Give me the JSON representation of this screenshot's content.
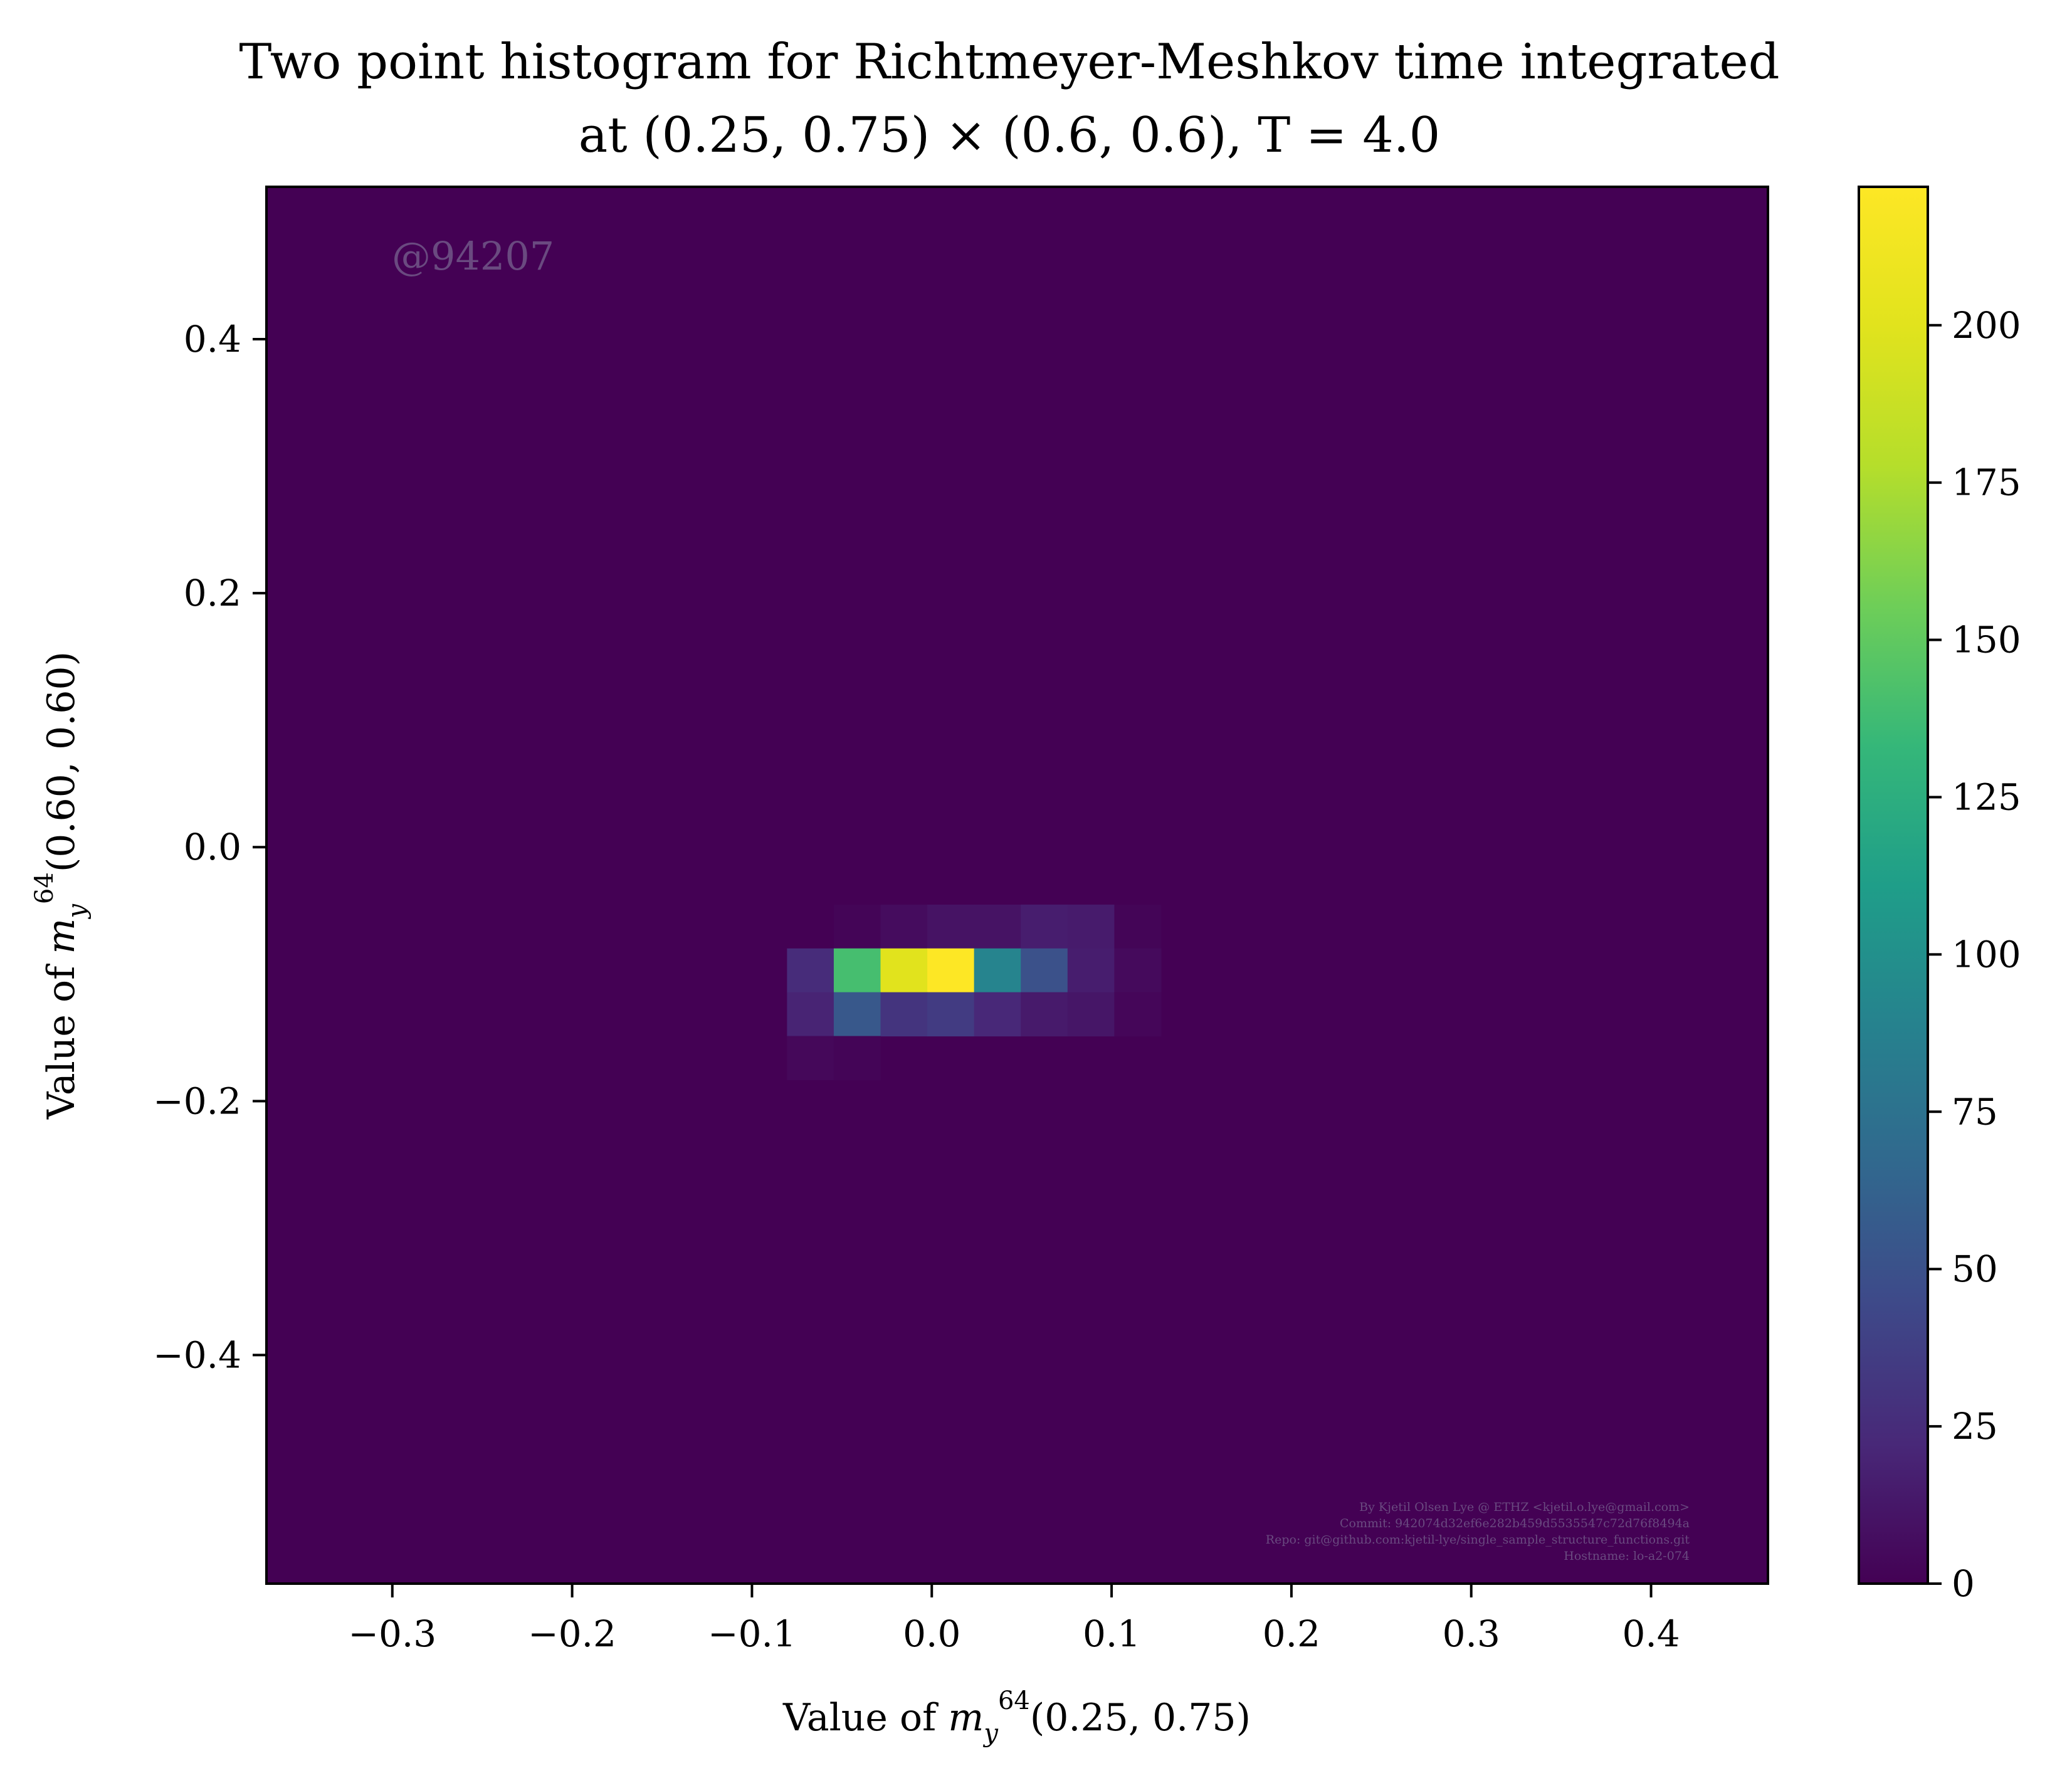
{
  "chart_data": {
    "type": "heatmap",
    "title_lines": [
      "Two point histogram for Richtmeyer-Meshkov time integrated",
      "at (0.25, 0.75) × (0.6, 0.6), T = 4.0"
    ],
    "xlabel": "Value of m_y^64(0.25, 0.75)",
    "ylabel": "Value of m_y^64(0.60, 0.60)",
    "xlim": [
      -0.37,
      0.465
    ],
    "ylim": [
      -0.58,
      0.52
    ],
    "x_ticks": [
      -0.3,
      -0.2,
      -0.1,
      0.0,
      0.1,
      0.2,
      0.3,
      0.4
    ],
    "x_tick_labels": [
      "−0.3",
      "−0.2",
      "−0.1",
      "0.0",
      "0.1",
      "0.2",
      "0.3",
      "0.4"
    ],
    "y_ticks": [
      -0.4,
      -0.2,
      0.0,
      0.2,
      0.4
    ],
    "y_tick_labels": [
      "−0.4",
      "−0.2",
      "0.0",
      "0.2",
      "0.4"
    ],
    "colorbar": {
      "colormap": "viridis",
      "range": [
        0,
        222
      ],
      "ticks": [
        0,
        25,
        50,
        75,
        100,
        125,
        150,
        175,
        200
      ],
      "tick_labels": [
        "0",
        "25",
        "50",
        "75",
        "100",
        "125",
        "150",
        "175",
        "200"
      ]
    },
    "background_value": 0,
    "bin_width": [
      0.026,
      0.0345
    ],
    "cells": [
      {
        "x": -0.0415,
        "y": -0.0625,
        "v": 2
      },
      {
        "x": -0.0155,
        "y": -0.0625,
        "v": 6
      },
      {
        "x": 0.0105,
        "y": -0.0625,
        "v": 10
      },
      {
        "x": 0.0365,
        "y": -0.0625,
        "v": 10
      },
      {
        "x": 0.0625,
        "y": -0.0625,
        "v": 16
      },
      {
        "x": 0.0885,
        "y": -0.0625,
        "v": 15
      },
      {
        "x": 0.1145,
        "y": -0.0625,
        "v": 2
      },
      {
        "x": -0.0675,
        "y": -0.097,
        "v": 25
      },
      {
        "x": -0.0415,
        "y": -0.097,
        "v": 140
      },
      {
        "x": -0.0155,
        "y": -0.097,
        "v": 200
      },
      {
        "x": 0.0105,
        "y": -0.097,
        "v": 222
      },
      {
        "x": 0.0365,
        "y": -0.097,
        "v": 90
      },
      {
        "x": 0.0625,
        "y": -0.097,
        "v": 50
      },
      {
        "x": 0.0885,
        "y": -0.097,
        "v": 16
      },
      {
        "x": 0.1145,
        "y": -0.097,
        "v": 5
      },
      {
        "x": -0.0675,
        "y": -0.1315,
        "v": 20
      },
      {
        "x": -0.0415,
        "y": -0.1315,
        "v": 55
      },
      {
        "x": -0.0155,
        "y": -0.1315,
        "v": 30
      },
      {
        "x": 0.0105,
        "y": -0.1315,
        "v": 35
      },
      {
        "x": 0.0365,
        "y": -0.1315,
        "v": 22
      },
      {
        "x": 0.0625,
        "y": -0.1315,
        "v": 14
      },
      {
        "x": 0.0885,
        "y": -0.1315,
        "v": 12
      },
      {
        "x": 0.1145,
        "y": -0.1315,
        "v": 3
      },
      {
        "x": -0.0675,
        "y": -0.166,
        "v": 4
      },
      {
        "x": -0.0415,
        "y": -0.166,
        "v": 2
      }
    ]
  },
  "watermark": "@94207",
  "credits": [
    "By Kjetil Olsen Lye @ ETHZ <kjetil.o.lye@gmail.com>",
    "Commit: 942074d32ef6e282b459d5535547c72d76f8494a",
    "Repo: git@github.com:kjetil-lye/single_sample_structure_functions.git",
    "Hostname: lo-a2-074"
  ]
}
